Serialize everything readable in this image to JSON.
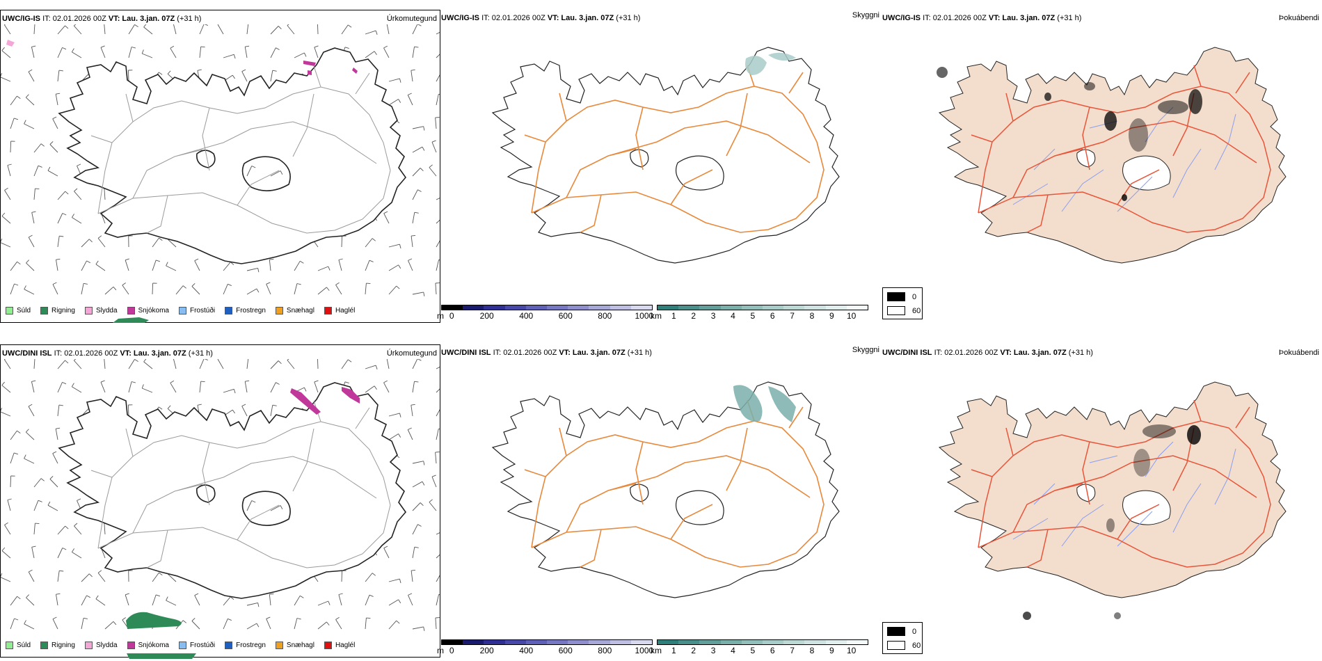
{
  "rows": [
    {
      "model": "UWC/IG-IS",
      "it": "IT: 02.01.2026 00Z",
      "vt": "VT: Lau. 3.jan. 07Z",
      "lead": "(+31 h)"
    },
    {
      "model": "UWC/DINI ISL",
      "it": "IT: 02.01.2026 00Z",
      "vt": "VT: Lau. 3.jan. 07Z",
      "lead": "(+31 h)"
    }
  ],
  "panel_labels": {
    "precip": "Úrkomutegund",
    "visibility": "Skyggni",
    "fog": "Þokuábendi"
  },
  "precip_legend": [
    {
      "label": "Súld",
      "color": "#90ee90"
    },
    {
      "label": "Rigning",
      "color": "#2e8b57"
    },
    {
      "label": "Slydda",
      "color": "#f4a6d7"
    },
    {
      "label": "Snjókoma",
      "color": "#c0399a"
    },
    {
      "label": "Frostúði",
      "color": "#87bdf0"
    },
    {
      "label": "Frostregn",
      "color": "#1f5fbf"
    },
    {
      "label": "Snæhagl",
      "color": "#f0a020"
    },
    {
      "label": "Haglél",
      "color": "#e01010"
    }
  ],
  "ceiling_scale": {
    "unit": "m",
    "ticks": [
      "0",
      "200",
      "400",
      "600",
      "800",
      "1000"
    ],
    "colors": [
      "#000000",
      "#1a1a6e",
      "#2f2f95",
      "#4848aa",
      "#6060b8",
      "#7777c4",
      "#8f8fce",
      "#a7a7d8",
      "#bfbfe4",
      "#d8d8ef"
    ]
  },
  "visibility_scale": {
    "unit": "km",
    "ticks": [
      "1",
      "2",
      "3",
      "4",
      "5",
      "6",
      "7",
      "8",
      "9",
      "10"
    ],
    "colors": [
      "#2f7f7a",
      "#4a8f8a",
      "#639f9a",
      "#7aafaa",
      "#92bfba",
      "#a8cdc9",
      "#bcd9d6",
      "#cfe4e2",
      "#e1eeed",
      "#f3f8f8"
    ]
  },
  "fog_legend": [
    {
      "label": "0",
      "color": "#000000"
    },
    {
      "label": "60",
      "color": "#ffffff"
    }
  ],
  "colors": {
    "land_fog": "#f3ddcc",
    "roads_orange": "#e8883a",
    "roads_red": "#e8553a",
    "rivers": "#8a9ff0",
    "coast": "#222222"
  }
}
